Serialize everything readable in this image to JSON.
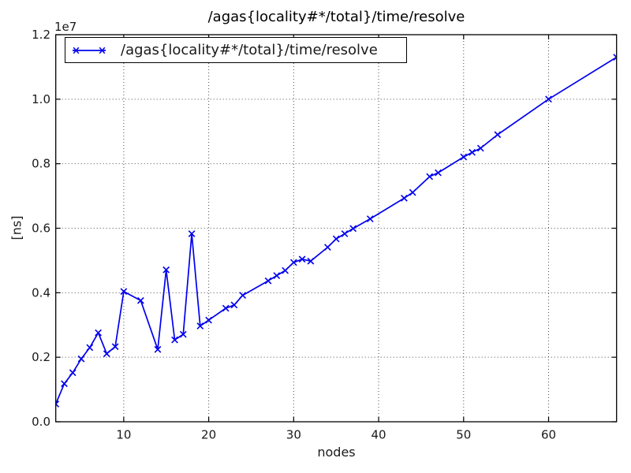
{
  "chart": {
    "title": "/agas{locality#*/total}/time/resolve",
    "legend": {
      "label": "/agas{locality#*/total}/time/resolve",
      "position": "upper left"
    },
    "axes": {
      "x": {
        "label": "nodes",
        "ticks": [
          10,
          20,
          30,
          40,
          50,
          60
        ],
        "tick_labels": [
          "10",
          "20",
          "30",
          "40",
          "50",
          "60"
        ]
      },
      "y": {
        "label": "[ns]",
        "offset_label": "1e7",
        "tick_values": [
          0,
          2000000,
          4000000,
          6000000,
          8000000,
          10000000,
          12000000
        ],
        "ticks": [
          "0.0",
          "0.2",
          "0.4",
          "0.6",
          "0.8",
          "1.0",
          "1.2"
        ]
      }
    },
    "colors": {
      "line": "#0000ee",
      "grid": "#4d4d4d",
      "spine": "#000000",
      "text": "#1a1a1a",
      "background": "#ffffff"
    }
  },
  "chart_data": {
    "type": "line",
    "title": "/agas{locality#*/total}/time/resolve",
    "xlabel": "nodes",
    "ylabel": "[ns]",
    "legend_entries": [
      "/agas{locality#*/total}/time/resolve"
    ],
    "legend_position": "upper left",
    "marker": "x",
    "grid": true,
    "xlim": [
      2,
      68
    ],
    "ylim": [
      0,
      12000000
    ],
    "x": [
      2,
      3,
      4,
      5,
      6,
      7,
      8,
      9,
      10,
      12,
      14,
      15,
      16,
      17,
      18,
      19,
      20,
      22,
      23,
      24,
      27,
      28,
      29,
      30,
      31,
      32,
      34,
      35,
      36,
      37,
      39,
      43,
      44,
      46,
      47,
      50,
      51,
      52,
      54,
      60,
      68
    ],
    "y": [
      550000,
      1180000,
      1520000,
      1950000,
      2300000,
      2760000,
      2110000,
      2330000,
      4040000,
      3760000,
      2240000,
      4710000,
      2540000,
      2710000,
      5830000,
      2970000,
      3150000,
      3520000,
      3620000,
      3920000,
      4370000,
      4530000,
      4690000,
      4940000,
      5040000,
      4980000,
      5410000,
      5670000,
      5830000,
      5990000,
      6290000,
      6930000,
      7110000,
      7600000,
      7720000,
      8210000,
      8350000,
      8480000,
      8900000,
      10000000,
      11300000
    ]
  }
}
